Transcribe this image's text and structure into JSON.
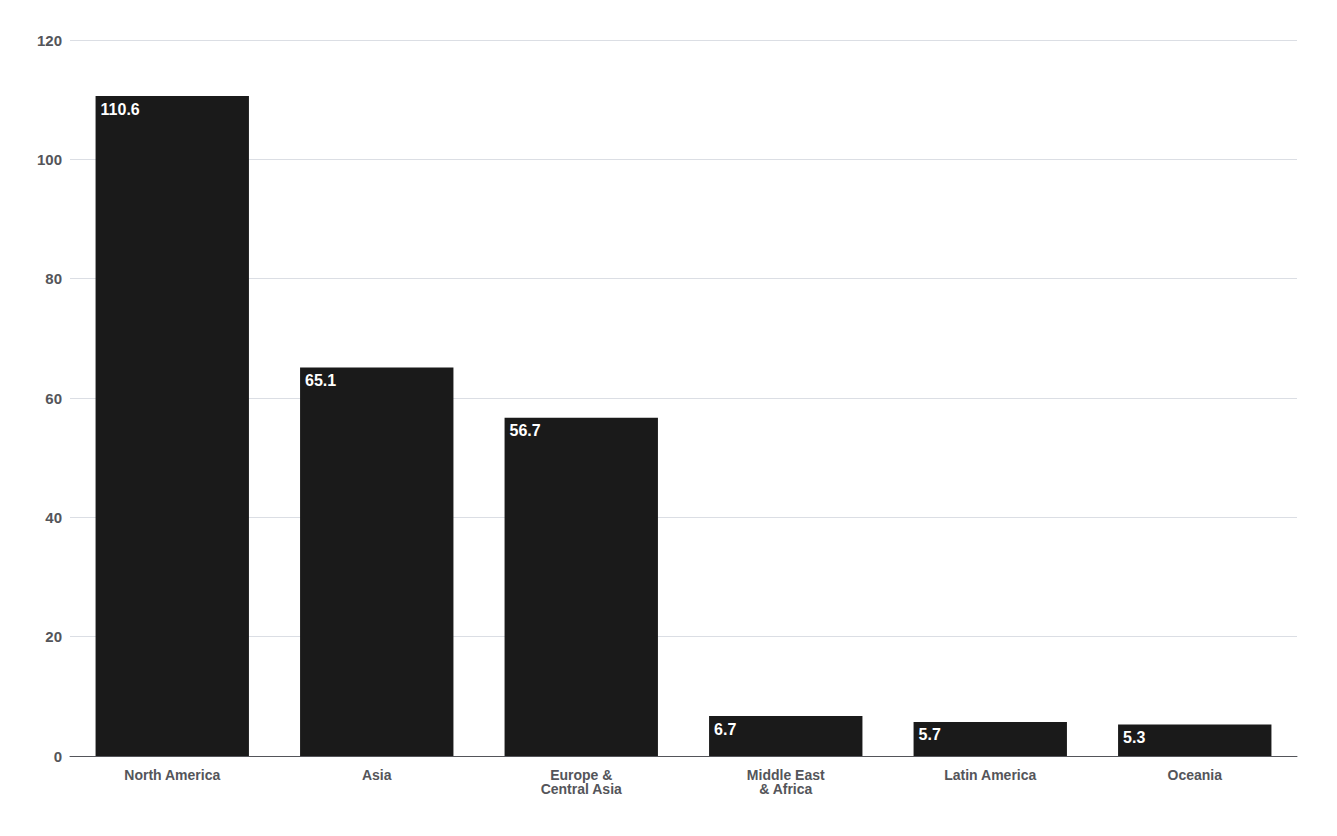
{
  "chart_data": {
    "type": "bar",
    "categories": [
      "North America",
      "Asia",
      "Europe &\nCentral Asia",
      "Middle East\n& Africa",
      "Latin America",
      "Oceania"
    ],
    "values": [
      110.6,
      65.1,
      56.7,
      6.7,
      5.7,
      5.3
    ],
    "color": "#1a1a1a",
    "ylim": [
      0,
      120
    ],
    "yticks": [
      0,
      20,
      40,
      60,
      80,
      100,
      120
    ],
    "grid": true,
    "data_labels": true
  }
}
